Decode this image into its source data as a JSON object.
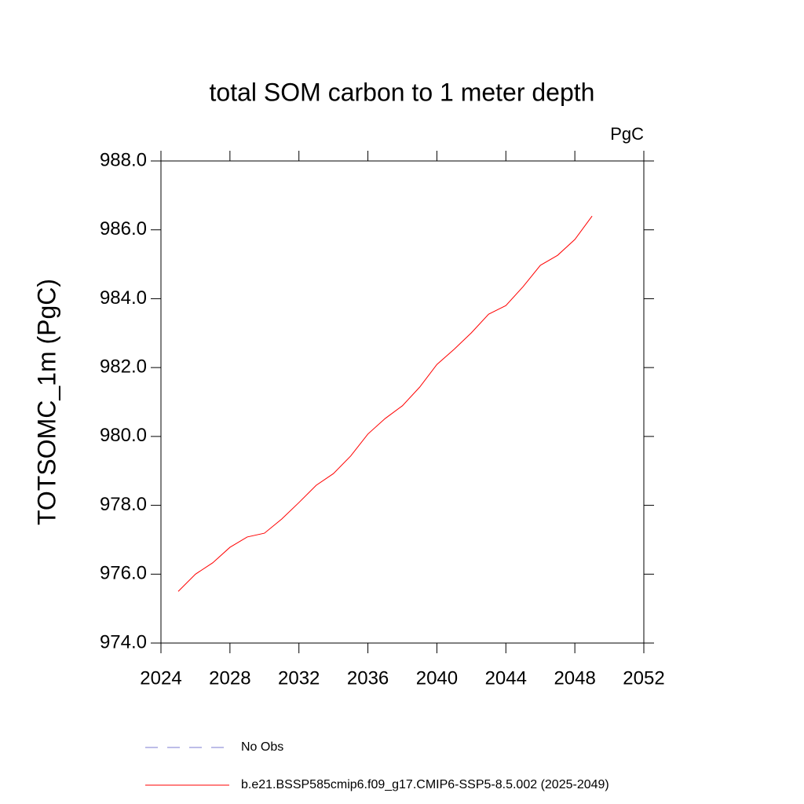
{
  "chart_data": {
    "type": "line",
    "title": "total SOM carbon to 1 meter depth",
    "units": "PgC",
    "y_label": "TOTSOMC_1m  (PgC)",
    "x": [
      2025,
      2026,
      2027,
      2028,
      2029,
      2030,
      2031,
      2032,
      2033,
      2034,
      2035,
      2036,
      2037,
      2038,
      2039,
      2040,
      2041,
      2042,
      2043,
      2044,
      2045,
      2046,
      2047,
      2048,
      2049
    ],
    "series": [
      {
        "name": "No Obs",
        "color": "#7b7bd0",
        "dashed": true,
        "values": [
          null,
          null,
          null,
          null,
          null,
          null,
          null,
          null,
          null,
          null,
          null,
          null,
          null,
          null,
          null,
          null,
          null,
          null,
          null,
          null,
          null,
          null,
          null,
          null,
          null
        ]
      },
      {
        "name": "b.e21.BSSP585cmip6.f09_g17.CMIP6-SSP5-8.5.002 (2025-2049)",
        "color": "#ff0000",
        "dashed": false,
        "values": [
          975.5,
          976.0,
          976.33,
          976.78,
          977.08,
          977.19,
          977.6,
          978.08,
          978.58,
          978.92,
          979.43,
          980.07,
          980.52,
          980.89,
          981.43,
          982.09,
          982.53,
          983.01,
          983.55,
          983.8,
          984.35,
          984.97,
          985.26,
          985.72,
          986.4
        ]
      }
    ],
    "xlim": [
      2024,
      2052
    ],
    "xticks": [
      2024,
      2028,
      2032,
      2036,
      2040,
      2044,
      2048,
      2052
    ],
    "ylim": [
      974,
      988
    ],
    "yticks": [
      {
        "value": 974,
        "label": "974.0"
      },
      {
        "value": 976,
        "label": "976.0"
      },
      {
        "value": 978,
        "label": "978.0"
      },
      {
        "value": 980,
        "label": "980.0"
      },
      {
        "value": 982,
        "label": "982.0"
      },
      {
        "value": 984,
        "label": "984.0"
      },
      {
        "value": 986,
        "label": "986.0"
      },
      {
        "value": 988,
        "label": "988.0"
      }
    ]
  }
}
